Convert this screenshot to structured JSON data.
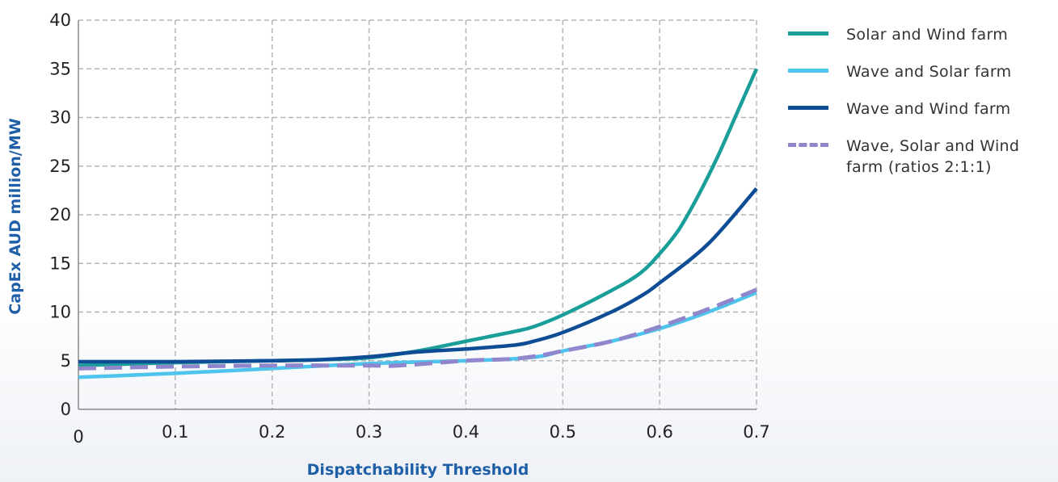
{
  "chart_data": {
    "type": "line",
    "xlabel": "Dispatchability Threshold",
    "ylabel": "CapEx AUD million/MW",
    "xlim": [
      0,
      0.7
    ],
    "ylim": [
      0,
      40
    ],
    "x_ticks": [
      "0",
      "0.1",
      "0.2",
      "0.3",
      "0.4",
      "0.5",
      "0.6",
      "0.7"
    ],
    "y_ticks": [
      "0",
      "5",
      "10",
      "15",
      "20",
      "25",
      "30",
      "35",
      "40"
    ],
    "grid": true,
    "legend_position": "right",
    "series": [
      {
        "name": "Solar and Wind farm",
        "color": "#1a9e9a",
        "style": "solid",
        "x": [
          0,
          0.1,
          0.2,
          0.25,
          0.3,
          0.35,
          0.4,
          0.45,
          0.47,
          0.5,
          0.55,
          0.58,
          0.6,
          0.62,
          0.64,
          0.66,
          0.68,
          0.7
        ],
        "y": [
          4.5,
          4.8,
          5.0,
          5.1,
          5.3,
          6.0,
          7.0,
          8.0,
          8.5,
          9.7,
          12.2,
          14.0,
          16.0,
          18.5,
          22.0,
          26.0,
          30.5,
          35.0
        ]
      },
      {
        "name": "Wave and Solar farm",
        "color": "#4cc4ec",
        "style": "solid",
        "x": [
          0,
          0.1,
          0.2,
          0.3,
          0.4,
          0.45,
          0.48,
          0.5,
          0.55,
          0.6,
          0.65,
          0.7
        ],
        "y": [
          3.3,
          3.7,
          4.2,
          4.7,
          5.0,
          5.2,
          5.5,
          6.0,
          7.0,
          8.3,
          10.0,
          12.0
        ]
      },
      {
        "name": "Wave and Wind farm",
        "color": "#0f4c96",
        "style": "solid",
        "x": [
          0,
          0.1,
          0.2,
          0.25,
          0.3,
          0.35,
          0.4,
          0.45,
          0.47,
          0.5,
          0.55,
          0.58,
          0.6,
          0.65,
          0.7
        ],
        "y": [
          4.9,
          4.9,
          5.0,
          5.1,
          5.4,
          5.9,
          6.2,
          6.6,
          7.0,
          7.9,
          10.0,
          11.6,
          13.0,
          17.0,
          22.7
        ]
      },
      {
        "name": "Wave, Solar and Wind farm (ratios 2:1:1)",
        "color": "#8f86cc",
        "style": "dashed",
        "x": [
          0,
          0.1,
          0.2,
          0.3,
          0.33,
          0.4,
          0.45,
          0.48,
          0.5,
          0.55,
          0.6,
          0.65,
          0.7
        ],
        "y": [
          4.2,
          4.4,
          4.5,
          4.5,
          4.5,
          5.0,
          5.2,
          5.6,
          6.0,
          7.0,
          8.5,
          10.3,
          12.3
        ]
      }
    ]
  }
}
